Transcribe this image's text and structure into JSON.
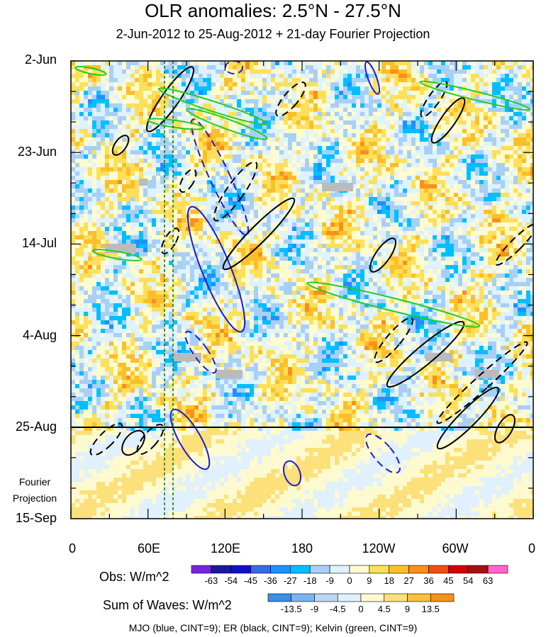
{
  "chart_data": {
    "type": "heatmap",
    "title": "OLR anomalies: 2.5°N - 27.5°N",
    "subtitle": "2-Jun-2012 to 25-Aug-2012 + 21-day Fourier Projection",
    "y_labels": [
      "2-Jun",
      "23-Jun",
      "14-Jul",
      "4-Aug",
      "25-Aug",
      "15-Sep"
    ],
    "x_labels": [
      "0",
      "60E",
      "120E",
      "180",
      "120W",
      "60W",
      "0"
    ],
    "xlim": [
      0,
      360
    ],
    "y_dates": [
      "2012-06-02",
      "2012-09-15"
    ],
    "fourier_start": "25-Aug",
    "fourier_label": [
      "Fourier",
      "Projection"
    ],
    "obs_colorbar": {
      "title": "Obs: W/m^2",
      "levels": [
        -63,
        -54,
        -45,
        -36,
        -27,
        -18,
        -9,
        0,
        9,
        18,
        27,
        36,
        45,
        54,
        63
      ],
      "colors": [
        "#7a22e0",
        "#1a1a9a",
        "#1010c8",
        "#3a6ae0",
        "#1e90ff",
        "#00bfff",
        "#a8d0f6",
        "#dff2ff",
        "#fffbd0",
        "#fce05a",
        "#fcbf2a",
        "#f8901c",
        "#f05010",
        "#d40000",
        "#a41010",
        "#ff66cc"
      ]
    },
    "waves_colorbar": {
      "title": "Sum of Waves: W/m^2",
      "levels": [
        -13.5,
        -9,
        -4.5,
        0,
        4.5,
        9,
        13.5
      ],
      "colors": [
        "#3a8ee8",
        "#78b4f0",
        "#b8d8f6",
        "#e0f0fc",
        "#fefad0",
        "#fce07a",
        "#fcbf44",
        "#f8901c"
      ]
    },
    "contours_note": "MJO (blue, CINT=9); ER (black, CINT=9); Kelvin (green, CINT=9)",
    "colors": {
      "mjo": "#1a1adc",
      "er": "#000000",
      "kelvin": "#22cc22",
      "guide": "#1a7a1a",
      "missing": "#bbbbbb"
    }
  }
}
